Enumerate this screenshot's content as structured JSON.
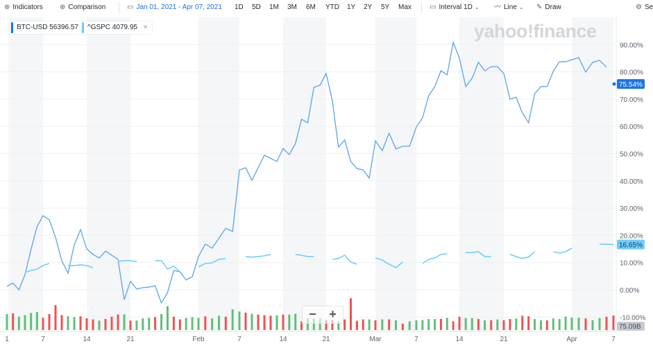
{
  "toolbar": {
    "indicators": "Indicators",
    "comparison": "Comparison",
    "date_range": "Jan 01, 2021 - Apr 07, 2021",
    "ranges": [
      "1D",
      "5D",
      "1M",
      "3M",
      "6M",
      "YTD",
      "1Y",
      "2Y",
      "5Y",
      "Max"
    ],
    "interval": "Interval 1D",
    "chart_type": "Line",
    "draw": "Draw",
    "settings": "Se",
    "icons": [
      "plus-circle-icon",
      "plus-circle-icon",
      "calendar-icon",
      "calendar-icon",
      "chevron-down-icon",
      "line-chart-icon",
      "pencil-icon",
      "gear-icon"
    ]
  },
  "legend": [
    {
      "symbol": "BTC-USD",
      "value": "56396.57",
      "color": "#1a73e8"
    },
    {
      "symbol": "^GSPC",
      "value": "4079.95",
      "color": "#6fcdfb",
      "close": "×"
    }
  ],
  "watermark": "yahoo!finance",
  "zoom_controls": {
    "minus": "−",
    "plus": "+"
  },
  "colors": {
    "btc": "#5aa2f0",
    "spx": "#6fcdfb",
    "up": "#5fbf78",
    "down": "#f0514f",
    "band": "#f4f6f7",
    "last_btc_bg": "#1a73e8",
    "last_spx_bg": "#6fcdfb",
    "last_vol_bg": "#c7cbd0"
  },
  "chart_data": {
    "type": "line",
    "title": "",
    "ylabel": "",
    "xlabel": "",
    "y_unit": "%",
    "ylim": [
      -10,
      100
    ],
    "y_ticks": [
      "90.00%",
      "80.00%",
      "70.00%",
      "60.00%",
      "50.00%",
      "40.00%",
      "30.00%",
      "20.00%",
      "10.00%",
      "0.00%",
      "-10.00%"
    ],
    "y_tick_values": [
      90,
      80,
      70,
      60,
      50,
      40,
      30,
      20,
      10,
      0,
      -10
    ],
    "x_ticks": [
      [
        "1",
        "2021-01-01"
      ],
      [
        "7",
        "2021-01-07"
      ],
      [
        "14",
        "2021-01-14"
      ],
      [
        "21",
        "2021-01-21"
      ],
      [
        "Feb",
        "2021-02-01"
      ],
      [
        "7",
        "2021-02-07"
      ],
      [
        "14",
        "2021-02-14"
      ],
      [
        "21",
        "2021-02-21"
      ],
      [
        "Mar",
        "2021-03-01"
      ],
      [
        "7",
        "2021-03-07"
      ],
      [
        "14",
        "2021-03-14"
      ],
      [
        "21",
        "2021-03-21"
      ],
      [
        "Apr",
        "2021-04-01"
      ],
      [
        "7",
        "2021-04-07"
      ]
    ],
    "grid": true,
    "y_axis_position": "right",
    "last_labels": {
      "btc": "75.54%",
      "spx": "16.65%",
      "volume": "75.09B"
    },
    "last_values": {
      "btc": 75.54,
      "spx": 16.65
    },
    "series": [
      {
        "name": "BTC-USD",
        "points": [
          [
            "2021-01-01",
            1.3
          ],
          [
            "2021-01-02",
            2.5
          ],
          [
            "2021-01-03",
            0.0
          ],
          [
            "2021-01-04",
            5.6
          ],
          [
            "2021-01-05",
            14.8
          ],
          [
            "2021-01-06",
            23.2
          ],
          [
            "2021-01-07",
            27.2
          ],
          [
            "2021-01-08",
            25.7
          ],
          [
            "2021-01-09",
            19.3
          ],
          [
            "2021-01-10",
            10.7
          ],
          [
            "2021-01-11",
            6.1
          ],
          [
            "2021-01-12",
            16.5
          ],
          [
            "2021-01-13",
            22.1
          ],
          [
            "2021-01-14",
            15.0
          ],
          [
            "2021-01-15",
            13.0
          ],
          [
            "2021-01-16",
            11.7
          ],
          [
            "2021-01-17",
            14.2
          ],
          [
            "2021-01-18",
            12.7
          ],
          [
            "2021-01-19",
            11.2
          ],
          [
            "2021-01-20",
            -3.6
          ],
          [
            "2021-01-21",
            3.1
          ],
          [
            "2021-01-22",
            0.3
          ],
          [
            "2021-01-23",
            0.8
          ],
          [
            "2021-01-24",
            1.0
          ],
          [
            "2021-01-25",
            1.5
          ],
          [
            "2021-01-26",
            -4.8
          ],
          [
            "2021-01-27",
            -1.0
          ],
          [
            "2021-01-28",
            7.1
          ],
          [
            "2021-01-29",
            6.6
          ],
          [
            "2021-01-30",
            3.6
          ],
          [
            "2021-01-31",
            4.8
          ],
          [
            "2021-02-01",
            12.2
          ],
          [
            "2021-02-02",
            16.8
          ],
          [
            "2021-02-03",
            15.3
          ],
          [
            "2021-02-05",
            22.6
          ],
          [
            "2021-02-06",
            21.4
          ],
          [
            "2021-02-07",
            44.0
          ],
          [
            "2021-02-08",
            44.8
          ],
          [
            "2021-02-09",
            40.2
          ],
          [
            "2021-02-11",
            49.4
          ],
          [
            "2021-02-13",
            47.1
          ],
          [
            "2021-02-14",
            51.9
          ],
          [
            "2021-02-15",
            49.6
          ],
          [
            "2021-02-16",
            53.7
          ],
          [
            "2021-02-17",
            62.6
          ],
          [
            "2021-02-18",
            61.3
          ],
          [
            "2021-02-19",
            74.3
          ],
          [
            "2021-02-20",
            75.1
          ],
          [
            "2021-02-21",
            79.4
          ],
          [
            "2021-02-22",
            69.5
          ],
          [
            "2021-02-23",
            52.4
          ],
          [
            "2021-02-24",
            55.0
          ],
          [
            "2021-02-25",
            47.1
          ],
          [
            "2021-02-26",
            44.5
          ],
          [
            "2021-02-27",
            44.0
          ],
          [
            "2021-02-28",
            41.0
          ],
          [
            "2021-03-01",
            54.7
          ],
          [
            "2021-03-02",
            51.1
          ],
          [
            "2021-03-03",
            57.5
          ],
          [
            "2021-03-04",
            51.7
          ],
          [
            "2021-03-05",
            52.7
          ],
          [
            "2021-03-06",
            52.7
          ],
          [
            "2021-03-07",
            59.8
          ],
          [
            "2021-03-08",
            63.1
          ],
          [
            "2021-03-09",
            71.2
          ],
          [
            "2021-03-10",
            74.6
          ],
          [
            "2021-03-11",
            80.4
          ],
          [
            "2021-03-12",
            78.9
          ],
          [
            "2021-03-13",
            90.8
          ],
          [
            "2021-03-14",
            85.0
          ],
          [
            "2021-03-15",
            74.6
          ],
          [
            "2021-03-16",
            77.6
          ],
          [
            "2021-03-17",
            83.5
          ],
          [
            "2021-03-18",
            80.4
          ],
          [
            "2021-03-19",
            81.9
          ],
          [
            "2021-03-20",
            81.9
          ],
          [
            "2021-03-21",
            79.4
          ],
          [
            "2021-03-22",
            70.0
          ],
          [
            "2021-03-23",
            70.7
          ],
          [
            "2021-03-24",
            64.9
          ],
          [
            "2021-03-25",
            61.3
          ],
          [
            "2021-03-26",
            72.0
          ],
          [
            "2021-03-27",
            74.6
          ],
          [
            "2021-03-28",
            74.6
          ],
          [
            "2021-03-29",
            80.2
          ],
          [
            "2021-03-30",
            83.7
          ],
          [
            "2021-03-31",
            83.7
          ],
          [
            "2021-04-02",
            85.2
          ],
          [
            "2021-04-03",
            79.9
          ],
          [
            "2021-04-04",
            83.5
          ],
          [
            "2021-04-05",
            84.2
          ],
          [
            "2021-04-06",
            81.7
          ]
        ]
      },
      {
        "name": "^GSPC",
        "points": [
          [
            "2021-01-04",
            6.4
          ],
          [
            "2021-01-05",
            7.1
          ],
          [
            "2021-01-06",
            7.6
          ],
          [
            "2021-01-07",
            8.9
          ],
          [
            "2021-01-08",
            9.7
          ],
          [
            "2021-01-11",
            8.9
          ],
          [
            "2021-01-12",
            8.9
          ],
          [
            "2021-01-13",
            9.2
          ],
          [
            "2021-01-14",
            8.9
          ],
          [
            "2021-01-15",
            8.1
          ],
          [
            "2021-01-19",
            10.4
          ],
          [
            "2021-01-20",
            10.7
          ],
          [
            "2021-01-21",
            10.7
          ],
          [
            "2021-01-22",
            10.4
          ],
          [
            "2021-01-25",
            10.7
          ],
          [
            "2021-01-26",
            10.7
          ],
          [
            "2021-01-27",
            7.6
          ],
          [
            "2021-01-28",
            8.7
          ],
          [
            "2021-01-29",
            6.6
          ],
          [
            "2021-02-01",
            8.4
          ],
          [
            "2021-02-02",
            9.7
          ],
          [
            "2021-02-03",
            9.9
          ],
          [
            "2021-02-04",
            11.2
          ],
          [
            "2021-02-05",
            11.5
          ],
          [
            "2021-02-08",
            12.2
          ],
          [
            "2021-02-09",
            12.0
          ],
          [
            "2021-02-10",
            12.2
          ],
          [
            "2021-02-11",
            12.5
          ],
          [
            "2021-02-12",
            13.0
          ],
          [
            "2021-02-16",
            13.0
          ],
          [
            "2021-02-17",
            12.7
          ],
          [
            "2021-02-18",
            12.2
          ],
          [
            "2021-02-19",
            12.2
          ],
          [
            "2021-02-22",
            11.2
          ],
          [
            "2021-02-23",
            11.5
          ],
          [
            "2021-02-24",
            12.7
          ],
          [
            "2021-02-25",
            10.2
          ],
          [
            "2021-02-26",
            9.4
          ],
          [
            "2021-03-01",
            11.7
          ],
          [
            "2021-03-02",
            10.9
          ],
          [
            "2021-03-03",
            9.4
          ],
          [
            "2021-03-04",
            8.1
          ],
          [
            "2021-03-05",
            10.2
          ],
          [
            "2021-03-08",
            9.7
          ],
          [
            "2021-03-09",
            11.2
          ],
          [
            "2021-03-10",
            11.7
          ],
          [
            "2021-03-11",
            13.0
          ],
          [
            "2021-03-12",
            13.2
          ],
          [
            "2021-03-15",
            13.7
          ],
          [
            "2021-03-16",
            13.7
          ],
          [
            "2021-03-17",
            14.0
          ],
          [
            "2021-03-18",
            12.2
          ],
          [
            "2021-03-19",
            12.2
          ],
          [
            "2021-03-22",
            13.0
          ],
          [
            "2021-03-23",
            12.2
          ],
          [
            "2021-03-24",
            11.5
          ],
          [
            "2021-03-25",
            12.0
          ],
          [
            "2021-03-26",
            14.0
          ],
          [
            "2021-03-29",
            14.0
          ],
          [
            "2021-03-30",
            13.5
          ],
          [
            "2021-03-31",
            14.0
          ],
          [
            "2021-04-01",
            15.3
          ],
          [
            "2021-04-05",
            16.8
          ],
          [
            "2021-04-06",
            16.7
          ],
          [
            "2021-04-07",
            16.65
          ]
        ]
      }
    ],
    "volume_unit": "B",
    "volume": [
      [
        "2021-01-01",
        83,
        "up"
      ],
      [
        "2021-01-02",
        86,
        "down"
      ],
      [
        "2021-01-03",
        69,
        "up"
      ],
      [
        "2021-01-04",
        77,
        "up"
      ],
      [
        "2021-01-05",
        88,
        "up"
      ],
      [
        "2021-01-06",
        93,
        "up"
      ],
      [
        "2021-01-07",
        63,
        "down"
      ],
      [
        "2021-01-08",
        83,
        "down"
      ],
      [
        "2021-01-09",
        129,
        "down"
      ],
      [
        "2021-01-10",
        77,
        "down"
      ],
      [
        "2021-01-11",
        71,
        "up"
      ],
      [
        "2021-01-12",
        67,
        "up"
      ],
      [
        "2021-01-13",
        71,
        "down"
      ],
      [
        "2021-01-14",
        61,
        "down"
      ],
      [
        "2021-01-15",
        55,
        "down"
      ],
      [
        "2021-01-16",
        49,
        "up"
      ],
      [
        "2021-01-17",
        57,
        "down"
      ],
      [
        "2021-01-18",
        69,
        "down"
      ],
      [
        "2021-01-19",
        80,
        "down"
      ],
      [
        "2021-01-20",
        81,
        "up"
      ],
      [
        "2021-01-21",
        49,
        "down"
      ],
      [
        "2021-01-22",
        49,
        "up"
      ],
      [
        "2021-01-23",
        60,
        "up"
      ],
      [
        "2021-01-24",
        63,
        "up"
      ],
      [
        "2021-01-25",
        67,
        "down"
      ],
      [
        "2021-01-26",
        83,
        "up"
      ],
      [
        "2021-01-27",
        123,
        "up"
      ],
      [
        "2021-01-28",
        69,
        "down"
      ],
      [
        "2021-01-29",
        55,
        "down"
      ],
      [
        "2021-01-30",
        63,
        "up"
      ],
      [
        "2021-01-31",
        67,
        "up"
      ],
      [
        "2021-02-01",
        63,
        "up"
      ],
      [
        "2021-02-02",
        71,
        "down"
      ],
      [
        "2021-02-03",
        60,
        "up"
      ],
      [
        "2021-02-04",
        74,
        "up"
      ],
      [
        "2021-02-05",
        69,
        "down"
      ],
      [
        "2021-02-06",
        107,
        "up"
      ],
      [
        "2021-02-07",
        96,
        "up"
      ],
      [
        "2021-02-08",
        90,
        "down"
      ],
      [
        "2021-02-09",
        84,
        "up"
      ],
      [
        "2021-02-10",
        80,
        "down"
      ],
      [
        "2021-02-11",
        77,
        "down"
      ],
      [
        "2021-02-12",
        74,
        "down"
      ],
      [
        "2021-02-13",
        76,
        "up"
      ],
      [
        "2021-02-14",
        80,
        "down"
      ],
      [
        "2021-02-15",
        80,
        "up"
      ],
      [
        "2021-02-16",
        84,
        "up"
      ],
      [
        "2021-02-17",
        45,
        "down"
      ],
      [
        "2021-02-18",
        60,
        "up"
      ],
      [
        "2021-02-19",
        60,
        "up"
      ],
      [
        "2021-02-20",
        60,
        "up"
      ],
      [
        "2021-02-21",
        51,
        "down"
      ],
      [
        "2021-02-22",
        51,
        "down"
      ],
      [
        "2021-02-23",
        45,
        "up"
      ],
      [
        "2021-02-24",
        55,
        "down"
      ],
      [
        "2021-02-25",
        164,
        "down"
      ],
      [
        "2021-02-26",
        48,
        "down"
      ],
      [
        "2021-02-27",
        55,
        "down"
      ],
      [
        "2021-02-28",
        55,
        "up"
      ],
      [
        "2021-03-01",
        50,
        "down"
      ],
      [
        "2021-03-02",
        55,
        "up"
      ],
      [
        "2021-03-03",
        55,
        "down"
      ],
      [
        "2021-03-04",
        50,
        "up"
      ],
      [
        "2021-03-05",
        33,
        "down"
      ],
      [
        "2021-03-06",
        45,
        "up"
      ],
      [
        "2021-03-07",
        50,
        "up"
      ],
      [
        "2021-03-08",
        52,
        "up"
      ],
      [
        "2021-03-09",
        57,
        "up"
      ],
      [
        "2021-03-10",
        57,
        "up"
      ],
      [
        "2021-03-11",
        58,
        "down"
      ],
      [
        "2021-03-12",
        63,
        "up"
      ],
      [
        "2021-03-13",
        45,
        "down"
      ],
      [
        "2021-03-14",
        69,
        "down"
      ],
      [
        "2021-03-15",
        62,
        "up"
      ],
      [
        "2021-03-16",
        62,
        "up"
      ],
      [
        "2021-03-17",
        57,
        "down"
      ],
      [
        "2021-03-18",
        50,
        "up"
      ],
      [
        "2021-03-19",
        51,
        "down"
      ],
      [
        "2021-03-20",
        55,
        "up"
      ],
      [
        "2021-03-21",
        51,
        "down"
      ],
      [
        "2021-03-22",
        57,
        "down"
      ],
      [
        "2021-03-23",
        60,
        "up"
      ],
      [
        "2021-03-24",
        74,
        "down"
      ],
      [
        "2021-03-25",
        71,
        "down"
      ],
      [
        "2021-03-26",
        57,
        "up"
      ],
      [
        "2021-03-27",
        50,
        "up"
      ],
      [
        "2021-03-28",
        50,
        "down"
      ],
      [
        "2021-03-29",
        60,
        "up"
      ],
      [
        "2021-03-30",
        57,
        "up"
      ],
      [
        "2021-03-31",
        69,
        "up"
      ],
      [
        "2021-04-01",
        64,
        "up"
      ],
      [
        "2021-04-02",
        64,
        "up"
      ],
      [
        "2021-04-03",
        60,
        "down"
      ],
      [
        "2021-04-04",
        51,
        "up"
      ],
      [
        "2021-04-05",
        62,
        "up"
      ],
      [
        "2021-04-06",
        69,
        "down"
      ],
      [
        "2021-04-07",
        75.09,
        "down"
      ]
    ]
  }
}
